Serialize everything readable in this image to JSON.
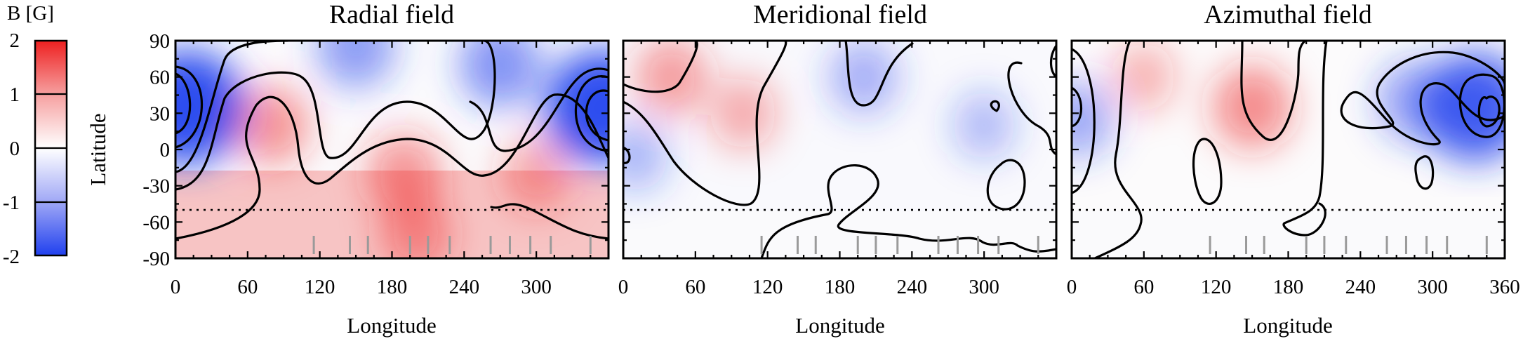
{
  "colorbar": {
    "title": "B [G]",
    "ticks": [
      2,
      1,
      0,
      -1,
      -2
    ],
    "tick_labels": [
      "2",
      "1",
      "0",
      "-1",
      "-2"
    ],
    "colors": {
      "positive": "#ee2020",
      "zero": "#ffffff",
      "negative": "#2040ee"
    }
  },
  "chart_data": [
    {
      "type": "heatmap",
      "title": "Radial field",
      "xlabel": "Longitude",
      "ylabel": "Latitude",
      "xlim": [
        0,
        360
      ],
      "ylim": [
        -90,
        90
      ],
      "xticks": [
        "0",
        "60",
        "120",
        "180",
        "240",
        "300"
      ],
      "yticks": [
        "90",
        "60",
        "30",
        "0",
        "-30",
        "-60",
        "-90"
      ],
      "dotted_latitude": -50,
      "observation_phases_longitude": [
        115,
        145,
        160,
        195,
        210,
        228,
        262,
        278,
        295,
        312,
        345
      ],
      "field_blobs": [
        {
          "lon": 10,
          "lat": 35,
          "value": -1.8
        },
        {
          "lon": 355,
          "lat": 35,
          "value": -1.8
        },
        {
          "lon": 150,
          "lat": 85,
          "value": -0.7
        },
        {
          "lon": 270,
          "lat": 70,
          "value": -0.8
        },
        {
          "lon": 80,
          "lat": 20,
          "value": 0.6
        },
        {
          "lon": 190,
          "lat": -20,
          "value": 0.6
        },
        {
          "lon": 200,
          "lat": -70,
          "value": 0.5
        },
        {
          "lon": 300,
          "lat": -20,
          "value": 0.4
        }
      ]
    },
    {
      "type": "heatmap",
      "title": "Meridional field",
      "xlabel": "Longitude",
      "ylabel": "",
      "xlim": [
        0,
        360
      ],
      "ylim": [
        -90,
        90
      ],
      "xticks": [
        "0",
        "60",
        "120",
        "180",
        "240",
        "300"
      ],
      "yticks": [],
      "dotted_latitude": -50,
      "observation_phases_longitude": [
        115,
        145,
        160,
        195,
        210,
        228,
        262,
        278,
        295,
        312,
        345
      ],
      "field_blobs": [
        {
          "lon": 40,
          "lat": 60,
          "value": 0.5
        },
        {
          "lon": 100,
          "lat": 30,
          "value": 0.3
        },
        {
          "lon": 200,
          "lat": 60,
          "value": -0.4
        },
        {
          "lon": 300,
          "lat": 20,
          "value": -0.2
        },
        {
          "lon": 10,
          "lat": -5,
          "value": -0.3
        }
      ]
    },
    {
      "type": "heatmap",
      "title": "Azimuthal field",
      "xlabel": "Longitude",
      "ylabel": "",
      "xlim": [
        0,
        360
      ],
      "ylim": [
        -90,
        90
      ],
      "xticks": [
        "0",
        "60",
        "120",
        "180",
        "240",
        "300",
        "360"
      ],
      "yticks": [],
      "dotted_latitude": -50,
      "observation_phases_longitude": [
        115,
        145,
        160,
        195,
        210,
        228,
        262,
        278,
        295,
        312,
        345
      ],
      "field_blobs": [
        {
          "lon": 150,
          "lat": 35,
          "value": 0.7
        },
        {
          "lon": 335,
          "lat": 35,
          "value": -1.6
        },
        {
          "lon": 285,
          "lat": 40,
          "value": -0.6
        },
        {
          "lon": 5,
          "lat": 25,
          "value": -0.5
        },
        {
          "lon": 60,
          "lat": 60,
          "value": 0.2
        }
      ]
    }
  ]
}
